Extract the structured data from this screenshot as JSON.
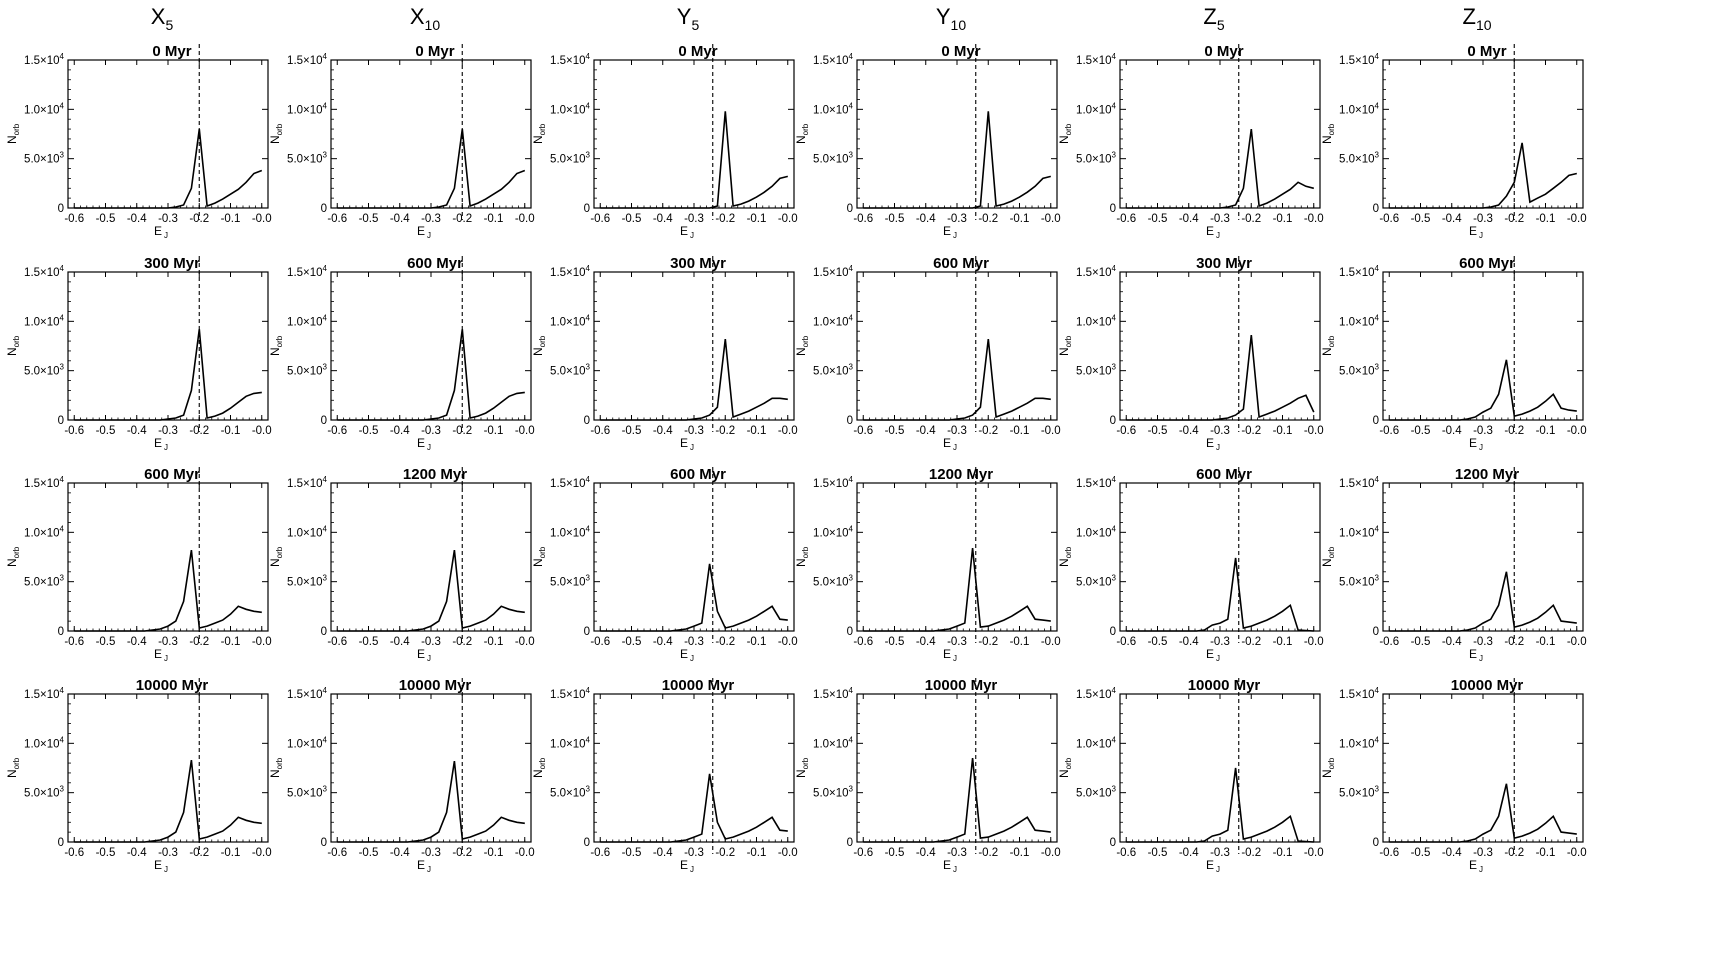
{
  "columns": [
    {
      "letter": "X",
      "sub": "5"
    },
    {
      "letter": "X",
      "sub": "10"
    },
    {
      "letter": "Y",
      "sub": "5"
    },
    {
      "letter": "Y",
      "sub": "10"
    },
    {
      "letter": "Z",
      "sub": "5"
    },
    {
      "letter": "Z",
      "sub": "10"
    }
  ],
  "axes": {
    "xlabel_main": "E",
    "xlabel_sub": "J",
    "ylabel_main": "N",
    "ylabel_sub": "orb",
    "xticks": [
      "-0.6",
      "-0.5",
      "-0.4",
      "-0.3",
      "-0.2",
      "-0.1",
      "-0.0"
    ],
    "xtick_values": [
      -0.6,
      -0.5,
      -0.4,
      -0.3,
      -0.2,
      -0.1,
      0.0
    ],
    "yticks": [
      {
        "value": 0,
        "mant": "0",
        "exp": ""
      },
      {
        "value": 5000,
        "mant": "5.0×10",
        "exp": "3"
      },
      {
        "value": 10000,
        "mant": "1.0×10",
        "exp": "4"
      },
      {
        "value": 15000,
        "mant": "1.5×10",
        "exp": "4"
      }
    ]
  },
  "colors": {
    "line": "#000000",
    "background": "#ffffff"
  },
  "chart_data": {
    "type": "line",
    "layout": "4 rows x 6 columns of small-multiple panels",
    "xlim": [
      -0.62,
      0.02
    ],
    "ylim": [
      0,
      15000
    ],
    "grid": false,
    "x": [
      -0.6,
      -0.575,
      -0.55,
      -0.525,
      -0.5,
      -0.475,
      -0.45,
      -0.425,
      -0.4,
      -0.375,
      -0.35,
      -0.325,
      -0.3,
      -0.275,
      -0.25,
      -0.225,
      -0.2,
      -0.175,
      -0.15,
      -0.125,
      -0.1,
      -0.075,
      -0.05,
      -0.025,
      0.0
    ],
    "panels": [
      {
        "row": 0,
        "col": 0,
        "title": "0 Myr",
        "dashed_x": -0.2,
        "y": [
          0,
          0,
          0,
          0,
          0,
          0,
          0,
          0,
          0,
          0,
          0,
          0,
          0,
          100,
          300,
          2000,
          8000,
          200,
          500,
          900,
          1400,
          1900,
          2600,
          3500,
          3800
        ]
      },
      {
        "row": 0,
        "col": 1,
        "title": "0 Myr",
        "dashed_x": -0.2,
        "y": [
          0,
          0,
          0,
          0,
          0,
          0,
          0,
          0,
          0,
          0,
          0,
          0,
          0,
          100,
          300,
          2000,
          8000,
          200,
          500,
          900,
          1400,
          1900,
          2600,
          3500,
          3800
        ]
      },
      {
        "row": 0,
        "col": 2,
        "title": "0 Myr",
        "dashed_x": -0.24,
        "y": [
          0,
          0,
          0,
          0,
          0,
          0,
          0,
          0,
          0,
          0,
          0,
          0,
          0,
          0,
          0,
          200,
          9800,
          200,
          400,
          700,
          1100,
          1600,
          2200,
          3000,
          3200
        ]
      },
      {
        "row": 0,
        "col": 3,
        "title": "0 Myr",
        "dashed_x": -0.24,
        "y": [
          0,
          0,
          0,
          0,
          0,
          0,
          0,
          0,
          0,
          0,
          0,
          0,
          0,
          0,
          0,
          200,
          9800,
          200,
          400,
          700,
          1100,
          1600,
          2200,
          3000,
          3200
        ]
      },
      {
        "row": 0,
        "col": 4,
        "title": "0 Myr",
        "dashed_x": -0.24,
        "y": [
          0,
          0,
          0,
          0,
          0,
          0,
          0,
          0,
          0,
          0,
          0,
          0,
          0,
          100,
          300,
          2000,
          8000,
          200,
          500,
          900,
          1400,
          1900,
          2600,
          2200,
          2000
        ]
      },
      {
        "row": 0,
        "col": 5,
        "title": "0 Myr",
        "dashed_x": -0.2,
        "y": [
          0,
          0,
          0,
          0,
          0,
          0,
          0,
          0,
          0,
          0,
          0,
          0,
          0,
          100,
          300,
          1200,
          2600,
          6600,
          600,
          1000,
          1400,
          2000,
          2600,
          3300,
          3500
        ]
      },
      {
        "row": 1,
        "col": 0,
        "title": "300 Myr",
        "dashed_x": -0.2,
        "y": [
          0,
          0,
          0,
          0,
          0,
          0,
          0,
          0,
          0,
          0,
          0,
          0,
          100,
          200,
          500,
          3000,
          9200,
          200,
          400,
          700,
          1200,
          1800,
          2400,
          2700,
          2800
        ]
      },
      {
        "row": 1,
        "col": 1,
        "title": "600 Myr",
        "dashed_x": -0.2,
        "y": [
          0,
          0,
          0,
          0,
          0,
          0,
          0,
          0,
          0,
          0,
          0,
          0,
          100,
          200,
          500,
          3000,
          9200,
          200,
          400,
          700,
          1200,
          1800,
          2400,
          2700,
          2800
        ]
      },
      {
        "row": 1,
        "col": 2,
        "title": "300 Myr",
        "dashed_x": -0.24,
        "y": [
          0,
          0,
          0,
          0,
          0,
          0,
          0,
          0,
          0,
          0,
          0,
          0,
          100,
          200,
          500,
          1300,
          8200,
          300,
          600,
          900,
          1300,
          1700,
          2200,
          2200,
          2100
        ]
      },
      {
        "row": 1,
        "col": 3,
        "title": "600 Myr",
        "dashed_x": -0.24,
        "y": [
          0,
          0,
          0,
          0,
          0,
          0,
          0,
          0,
          0,
          0,
          0,
          0,
          100,
          200,
          500,
          1300,
          8200,
          300,
          600,
          900,
          1300,
          1700,
          2200,
          2200,
          2100
        ]
      },
      {
        "row": 1,
        "col": 4,
        "title": "300 Myr",
        "dashed_x": -0.24,
        "y": [
          0,
          0,
          0,
          0,
          0,
          0,
          0,
          0,
          0,
          0,
          0,
          0,
          100,
          200,
          500,
          1100,
          8600,
          300,
          600,
          900,
          1300,
          1700,
          2200,
          2500,
          800
        ]
      },
      {
        "row": 1,
        "col": 5,
        "title": "600 Myr",
        "dashed_x": -0.2,
        "y": [
          0,
          0,
          0,
          0,
          0,
          0,
          0,
          0,
          0,
          0,
          100,
          300,
          800,
          1200,
          2600,
          6100,
          400,
          600,
          900,
          1300,
          1900,
          2600,
          1200,
          1000,
          900
        ]
      },
      {
        "row": 2,
        "col": 0,
        "title": "600 Myr",
        "dashed_x": -0.2,
        "y": [
          0,
          0,
          0,
          0,
          0,
          0,
          0,
          0,
          0,
          0,
          100,
          200,
          500,
          1000,
          3000,
          8200,
          300,
          500,
          800,
          1100,
          1700,
          2500,
          2200,
          2000,
          1900
        ]
      },
      {
        "row": 2,
        "col": 1,
        "title": "1200 Myr",
        "dashed_x": -0.2,
        "y": [
          0,
          0,
          0,
          0,
          0,
          0,
          0,
          0,
          0,
          0,
          100,
          200,
          500,
          1000,
          3000,
          8200,
          300,
          500,
          800,
          1100,
          1700,
          2500,
          2200,
          2000,
          1900
        ]
      },
      {
        "row": 2,
        "col": 2,
        "title": "600 Myr",
        "dashed_x": -0.24,
        "y": [
          0,
          0,
          0,
          0,
          0,
          0,
          0,
          0,
          0,
          0,
          100,
          200,
          500,
          800,
          6800,
          2000,
          300,
          500,
          800,
          1100,
          1500,
          2000,
          2500,
          1200,
          1100
        ]
      },
      {
        "row": 2,
        "col": 3,
        "title": "1200 Myr",
        "dashed_x": -0.24,
        "y": [
          0,
          0,
          0,
          0,
          0,
          0,
          0,
          0,
          0,
          0,
          100,
          200,
          500,
          800,
          8400,
          400,
          500,
          800,
          1100,
          1500,
          2000,
          2500,
          1200,
          1100,
          1000
        ]
      },
      {
        "row": 2,
        "col": 4,
        "title": "600 Myr",
        "dashed_x": -0.24,
        "y": [
          0,
          0,
          0,
          0,
          0,
          0,
          0,
          0,
          0,
          0,
          100,
          600,
          800,
          1200,
          7400,
          300,
          500,
          800,
          1100,
          1500,
          2000,
          2600,
          100,
          50,
          0
        ]
      },
      {
        "row": 2,
        "col": 5,
        "title": "1200 Myr",
        "dashed_x": -0.2,
        "y": [
          0,
          0,
          0,
          0,
          0,
          0,
          0,
          0,
          0,
          0,
          100,
          300,
          800,
          1200,
          2600,
          6000,
          400,
          600,
          900,
          1300,
          1900,
          2600,
          1000,
          900,
          800
        ]
      },
      {
        "row": 3,
        "col": 0,
        "title": "10000 Myr",
        "dashed_x": -0.2,
        "y": [
          0,
          0,
          0,
          0,
          0,
          0,
          0,
          0,
          0,
          0,
          100,
          200,
          500,
          1000,
          3000,
          8300,
          300,
          500,
          800,
          1100,
          1700,
          2500,
          2200,
          2000,
          1900
        ]
      },
      {
        "row": 3,
        "col": 1,
        "title": "10000 Myr",
        "dashed_x": -0.2,
        "y": [
          0,
          0,
          0,
          0,
          0,
          0,
          0,
          0,
          0,
          0,
          100,
          200,
          500,
          1000,
          3000,
          8200,
          300,
          500,
          800,
          1100,
          1700,
          2500,
          2200,
          2000,
          1900
        ]
      },
      {
        "row": 3,
        "col": 2,
        "title": "10000 Myr",
        "dashed_x": -0.24,
        "y": [
          0,
          0,
          0,
          0,
          0,
          0,
          0,
          0,
          0,
          0,
          100,
          200,
          500,
          800,
          6900,
          2000,
          300,
          500,
          800,
          1100,
          1500,
          2000,
          2500,
          1200,
          1100
        ]
      },
      {
        "row": 3,
        "col": 3,
        "title": "10000 Myr",
        "dashed_x": -0.24,
        "y": [
          0,
          0,
          0,
          0,
          0,
          0,
          0,
          0,
          0,
          0,
          100,
          200,
          500,
          800,
          8500,
          400,
          500,
          800,
          1100,
          1500,
          2000,
          2500,
          1200,
          1100,
          1000
        ]
      },
      {
        "row": 3,
        "col": 4,
        "title": "10000 Myr",
        "dashed_x": -0.24,
        "y": [
          0,
          0,
          0,
          0,
          0,
          0,
          0,
          0,
          0,
          0,
          100,
          600,
          800,
          1200,
          7500,
          300,
          500,
          800,
          1100,
          1500,
          2000,
          2600,
          100,
          50,
          0
        ]
      },
      {
        "row": 3,
        "col": 5,
        "title": "10000 Myr",
        "dashed_x": -0.2,
        "y": [
          0,
          0,
          0,
          0,
          0,
          0,
          0,
          0,
          0,
          0,
          100,
          300,
          800,
          1200,
          2600,
          5900,
          400,
          600,
          900,
          1300,
          1900,
          2600,
          1000,
          900,
          800
        ]
      }
    ]
  }
}
